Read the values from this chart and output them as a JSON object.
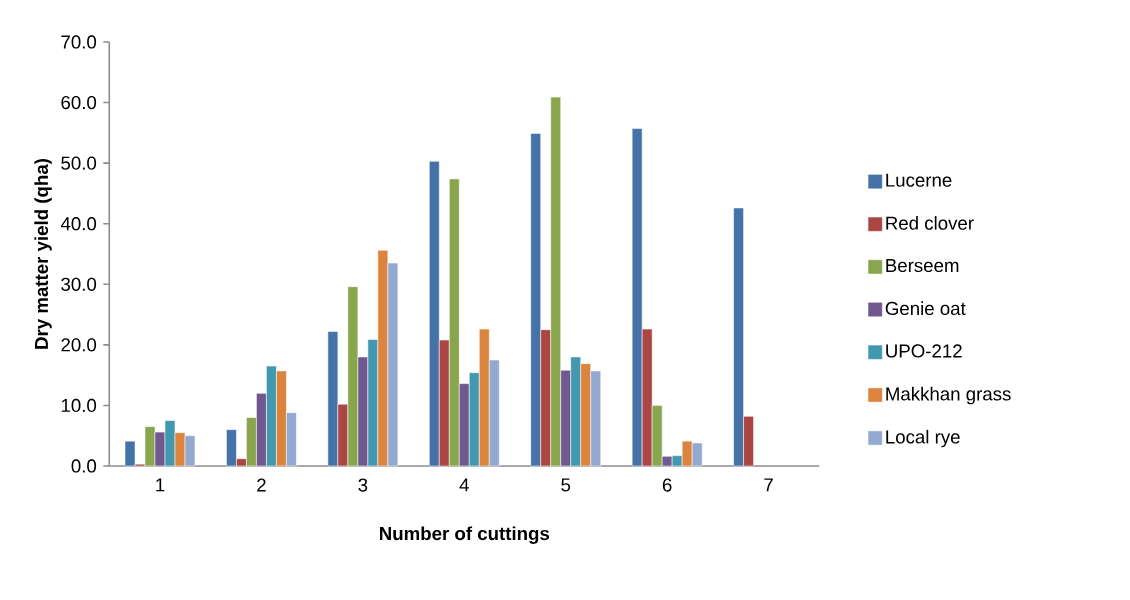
{
  "chart_data": {
    "type": "bar",
    "xlabel": "Number of cuttings",
    "ylabel": "Dry matter yield (qha)",
    "categories": [
      "1",
      "2",
      "3",
      "4",
      "5",
      "6",
      "7"
    ],
    "series": [
      {
        "name": "Lucerne",
        "color": "#4572a7",
        "values": [
          4.1,
          6.0,
          22.2,
          50.3,
          54.9,
          55.7,
          42.6
        ]
      },
      {
        "name": "Red clover",
        "color": "#aa4643",
        "values": [
          0.3,
          1.2,
          10.2,
          20.8,
          22.5,
          22.6,
          8.2
        ]
      },
      {
        "name": "Berseem",
        "color": "#89a54e",
        "values": [
          6.5,
          8.0,
          29.6,
          47.4,
          60.9,
          10.0,
          null
        ]
      },
      {
        "name": "Genie oat",
        "color": "#71588f",
        "values": [
          5.6,
          12.0,
          18.0,
          13.6,
          15.8,
          1.6,
          null
        ]
      },
      {
        "name": "UPO-212",
        "color": "#4198af",
        "values": [
          7.5,
          16.5,
          20.9,
          15.4,
          18.0,
          1.7,
          null
        ]
      },
      {
        "name": "Makkhan grass",
        "color": "#db843d",
        "values": [
          5.5,
          15.7,
          35.6,
          22.6,
          16.9,
          4.1,
          null
        ]
      },
      {
        "name": "Local rye",
        "color": "#93a9cf",
        "values": [
          5.0,
          8.8,
          33.5,
          17.5,
          15.7,
          3.8,
          null
        ]
      }
    ],
    "ylim": [
      0,
      70
    ],
    "yticks": [
      {
        "value": 0,
        "label": "0.0"
      },
      {
        "value": 10,
        "label": "10.0"
      },
      {
        "value": 20,
        "label": "20.0"
      },
      {
        "value": 30,
        "label": "30.0"
      },
      {
        "value": 40,
        "label": "40.0"
      },
      {
        "value": 50,
        "label": "50.0"
      },
      {
        "value": 60,
        "label": "60.0"
      },
      {
        "value": 70,
        "label": "70.0"
      }
    ],
    "grid": false,
    "legend": "right"
  }
}
